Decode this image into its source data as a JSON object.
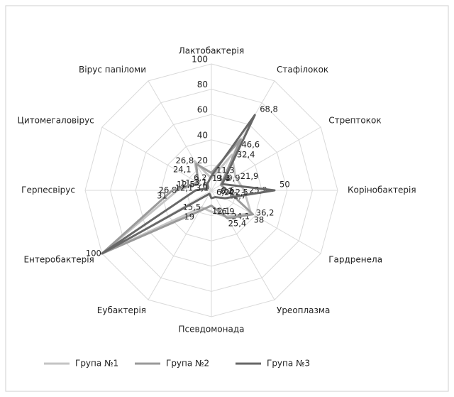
{
  "chart_data": {
    "type": "radar",
    "categories": [
      "Лактобактерія",
      "Стафілокок",
      "Стрептокок",
      "Корінобактерія",
      "Гардренела",
      "Уреоплазма",
      "Псевдомонада",
      "Еубактерія",
      "Ентеробактерія",
      "Герпесвірус",
      "Цитомегаловірус",
      "Вірус папіломи"
    ],
    "series": [
      {
        "name": "Група №1",
        "color": "#c4c4c4",
        "values": [
          9.4,
          32.4,
          21.9,
          25.9,
          36.2,
          24.1,
          16.9,
          15.5,
          100,
          26.8,
          11.3,
          26.8
        ],
        "value_labels": [
          "9,4",
          "32,4",
          "21,9",
          "25,9",
          "36,2",
          "24,1",
          "16,9",
          "15,5",
          "100",
          "26,8",
          "11,3",
          "26,8"
        ]
      },
      {
        "name": "Група №2",
        "color": "#9a9a9a",
        "values": [
          13.8,
          46.6,
          8.6,
          12.7,
          38,
          25.4,
          12.1,
          19,
          100,
          31,
          12.1,
          24.1
        ],
        "value_labels": [
          "13,8",
          "46,6",
          "8,6",
          "12,7",
          "38",
          "25,4",
          "12,1",
          "19",
          null,
          "31",
          "12,1",
          "24,1"
        ]
      },
      {
        "name": "Група №3",
        "color": "#676767",
        "values": [
          11.3,
          68.8,
          9.9,
          50,
          12.5,
          6.2,
          6.2,
          3.1,
          100,
          12.5,
          3.1,
          6.2
        ],
        "value_labels": [
          "11,3",
          "68,8",
          "9,9",
          "50",
          "12,5",
          "6,2",
          "6,2",
          "3,1",
          null,
          "12,5",
          "3,1",
          "6,2"
        ]
      }
    ],
    "rlim": [
      0,
      100
    ],
    "rticks": [
      0,
      20,
      40,
      60,
      80,
      100
    ],
    "grid": true,
    "legend": "bottom"
  }
}
